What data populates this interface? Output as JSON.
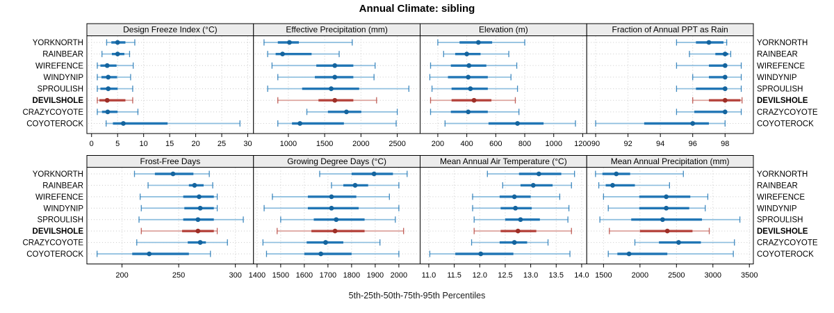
{
  "highlight_site": "DEVILSHOLE",
  "colors": {
    "normal": {
      "light": "#8cbdde",
      "main": "#2176b5",
      "dot": "#14649e"
    },
    "highlight": {
      "light": "#dda49e",
      "main": "#b5433c",
      "dot": "#9e2f27"
    },
    "strip_bg": "#ececec",
    "grid": "#c9c9c9",
    "border": "#000000",
    "panel_bg": "#ffffff"
  },
  "chart_data": {
    "type": "dotplot",
    "title": "Annual Climate: sibling",
    "xlabel": "5th-25th-50th-75th-95th Percentiles",
    "percentiles": [
      5,
      25,
      50,
      75,
      95
    ],
    "legend_position": "none",
    "grid": "dotted",
    "layout_hint": "2 rows x 4 columns of panels, free x scales, site names on both left and right",
    "categories": [
      "YORKNORTH",
      "RAINBEAR",
      "WIREFENCE",
      "WINDYNIP",
      "SPROULISH",
      "DEVILSHOLE",
      "CRAZYCOYOTE",
      "COYOTEROCK"
    ],
    "panels": [
      {
        "title": "Design Freeze Index (°C)",
        "xlim": [
          -0.9,
          31.1
        ],
        "ticks": [
          0,
          5,
          10,
          15,
          20,
          25,
          30
        ],
        "tick_labels": [
          "0",
          "5",
          "10",
          "15",
          "20",
          "25",
          "30"
        ],
        "values": {
          "YORKNORTH": [
            2.9,
            3.8,
            5.0,
            6.5,
            8.3
          ],
          "RAINBEAR": [
            2.0,
            3.9,
            5.0,
            6.3,
            7.3
          ],
          "WIREFENCE": [
            1.1,
            1.7,
            3.0,
            4.8,
            8.0
          ],
          "WINDYNIP": [
            1.1,
            1.9,
            3.2,
            4.9,
            7.5
          ],
          "SPROULISH": [
            1.1,
            1.7,
            3.2,
            5.0,
            7.9
          ],
          "DEVILSHOLE": [
            1.1,
            1.5,
            3.0,
            6.5,
            7.9
          ],
          "CRAZYCOYOTE": [
            1.1,
            2.0,
            3.1,
            5.0,
            8.9
          ],
          "COYOTEROCK": [
            2.8,
            4.1,
            6.1,
            14.6,
            28.5
          ]
        }
      },
      {
        "title": "Effective Precipitation (mm)",
        "xlim": [
          520,
          2815
        ],
        "ticks": [
          1000,
          1500,
          2000,
          2500
        ],
        "tick_labels": [
          "1000",
          "1500",
          "2000",
          "2500"
        ],
        "values": {
          "YORKNORTH": [
            665,
            855,
            1015,
            1145,
            1880
          ],
          "RAINBEAR": [
            715,
            825,
            920,
            1320,
            1700
          ],
          "WIREFENCE": [
            775,
            1385,
            1640,
            1895,
            2195
          ],
          "WINDYNIP": [
            855,
            1365,
            1640,
            1895,
            2180
          ],
          "SPROULISH": [
            715,
            1190,
            1590,
            1975,
            2660
          ],
          "DEVILSHOLE": [
            855,
            1415,
            1640,
            1895,
            2215
          ],
          "CRAZYCOYOTE": [
            1255,
            1545,
            1800,
            2005,
            2500
          ],
          "COYOTEROCK": [
            855,
            1050,
            1160,
            1765,
            2485
          ]
        }
      },
      {
        "title": "Elevation (m)",
        "xlim": [
          78,
          1228
        ],
        "ticks": [
          200,
          400,
          600,
          800,
          1000,
          1200
        ],
        "tick_labels": [
          "200",
          "400",
          "600",
          "800",
          "1000",
          "1200"
        ],
        "values": {
          "YORKNORTH": [
            200,
            350,
            480,
            575,
            800
          ],
          "RAINBEAR": [
            240,
            320,
            400,
            495,
            690
          ],
          "WIREFENCE": [
            150,
            290,
            415,
            535,
            745
          ],
          "WINDYNIP": [
            145,
            270,
            410,
            545,
            705
          ],
          "SPROULISH": [
            160,
            295,
            425,
            545,
            750
          ],
          "DEVILSHOLE": [
            150,
            295,
            450,
            570,
            735
          ],
          "CRAZYCOYOTE": [
            150,
            290,
            410,
            545,
            760
          ],
          "COYOTEROCK": [
            250,
            550,
            750,
            930,
            1150
          ]
        }
      },
      {
        "title": "Fraction of Annual PPT as Rain",
        "xlim": [
          89.45,
          99.75
        ],
        "ticks": [
          90,
          92,
          94,
          96,
          98
        ],
        "tick_labels": [
          "90",
          "92",
          "94",
          "96",
          "98"
        ],
        "values": {
          "YORKNORTH": [
            95.0,
            96.2,
            97.0,
            97.9,
            98.1
          ],
          "RAINBEAR": [
            95.8,
            97.4,
            98.0,
            98.2,
            98.35
          ],
          "WIREFENCE": [
            95.0,
            97.0,
            98.0,
            98.1,
            99.0
          ],
          "WINDYNIP": [
            96.0,
            97.0,
            98.0,
            98.1,
            99.0
          ],
          "SPROULISH": [
            95.0,
            96.2,
            98.0,
            98.1,
            99.0
          ],
          "DEVILSHOLE": [
            96.0,
            97.0,
            98.0,
            98.95,
            99.05
          ],
          "CRAZYCOYOTE": [
            95.0,
            96.1,
            98.0,
            98.1,
            99.0
          ],
          "COYOTEROCK": [
            90.0,
            93.0,
            96.0,
            97.0,
            98.0
          ]
        }
      },
      {
        "title": "Frost-Free Days",
        "xlim": [
          169,
          316
        ],
        "ticks": [
          200,
          250,
          300
        ],
        "tick_labels": [
          "200",
          "250",
          "300"
        ],
        "values": {
          "YORKNORTH": [
            211,
            229,
            245,
            263,
            277
          ],
          "RAINBEAR": [
            223,
            259,
            264,
            272,
            280
          ],
          "WIREFENCE": [
            216,
            254,
            268,
            281,
            284
          ],
          "WINDYNIP": [
            217,
            255,
            269,
            281,
            284
          ],
          "SPROULISH": [
            215,
            254,
            267,
            281,
            307
          ],
          "DEVILSHOLE": [
            217,
            253,
            267,
            281,
            284
          ],
          "CRAZYCOYOTE": [
            213,
            258,
            269,
            274,
            293
          ],
          "COYOTEROCK": [
            178,
            209,
            224,
            259,
            278
          ]
        }
      },
      {
        "title": "Growing Degree Days (°C)",
        "xlim": [
          1385,
          2090
        ],
        "ticks": [
          1400,
          1500,
          1600,
          1700,
          1800,
          1900,
          2000
        ],
        "tick_labels": [
          "1400",
          "1500",
          "1600",
          "1700",
          "1800",
          "1900",
          "2000"
        ],
        "values": {
          "YORKNORTH": [
            1665,
            1800,
            1895,
            1975,
            2035
          ],
          "RAINBEAR": [
            1715,
            1765,
            1815,
            1870,
            2000
          ],
          "WIREFENCE": [
            1465,
            1615,
            1715,
            1820,
            1960
          ],
          "WINDYNIP": [
            1430,
            1615,
            1715,
            1830,
            2000
          ],
          "SPROULISH": [
            1500,
            1640,
            1735,
            1855,
            1985
          ],
          "DEVILSHOLE": [
            1485,
            1630,
            1730,
            1855,
            2020
          ],
          "CRAZYCOYOTE": [
            1425,
            1610,
            1690,
            1765,
            1920
          ],
          "COYOTEROCK": [
            1440,
            1600,
            1670,
            1800,
            2000
          ]
        }
      },
      {
        "title": "Mean Annual Air Temperature (°C)",
        "xlim": [
          10.83,
          14.1
        ],
        "ticks": [
          11.0,
          11.5,
          12.0,
          12.5,
          13.0,
          13.5,
          14.0
        ],
        "tick_labels": [
          "11.0",
          "11.5",
          "12.0",
          "12.5",
          "13.0",
          "13.5",
          "14.0"
        ],
        "values": {
          "YORKNORTH": [
            12.15,
            12.77,
            13.16,
            13.6,
            13.86
          ],
          "RAINBEAR": [
            12.45,
            12.8,
            13.05,
            13.43,
            13.8
          ],
          "WIREFENCE": [
            11.86,
            12.39,
            12.68,
            13.0,
            13.57
          ],
          "WINDYNIP": [
            11.86,
            12.41,
            12.7,
            13.02,
            13.75
          ],
          "SPROULISH": [
            11.89,
            12.5,
            12.8,
            13.18,
            13.73
          ],
          "DEVILSHOLE": [
            11.89,
            12.41,
            12.75,
            13.11,
            13.8
          ],
          "CRAZYCOYOTE": [
            11.84,
            12.39,
            12.68,
            12.93,
            13.34
          ],
          "COYOTEROCK": [
            11.02,
            11.52,
            12.02,
            12.66,
            13.77
          ]
        }
      },
      {
        "title": "Mean Annual Precipitation (mm)",
        "xlim": [
          1270,
          3555
        ],
        "ticks": [
          1500,
          2000,
          2500,
          3000,
          3500
        ],
        "tick_labels": [
          "1500",
          "2000",
          "2500",
          "3000",
          "3500"
        ],
        "values": {
          "YORKNORTH": [
            1390,
            1485,
            1675,
            1865,
            2595
          ],
          "RAINBEAR": [
            1435,
            1530,
            1625,
            1930,
            2405
          ],
          "WIREFENCE": [
            1500,
            1990,
            2360,
            2690,
            2930
          ],
          "WINDYNIP": [
            1565,
            1990,
            2360,
            2675,
            2895
          ],
          "SPROULISH": [
            1450,
            1880,
            2310,
            2850,
            3370
          ],
          "DEVILSHOLE": [
            1580,
            2000,
            2375,
            2720,
            2950
          ],
          "CRAZYCOYOTE": [
            1930,
            2260,
            2530,
            2835,
            3295
          ],
          "COYOTEROCK": [
            1565,
            1690,
            1850,
            2375,
            3280
          ]
        }
      }
    ]
  }
}
